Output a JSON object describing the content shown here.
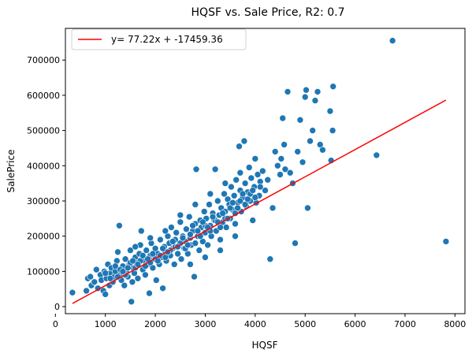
{
  "chart_data": {
    "type": "scatter",
    "title": "HQSF vs. Sale Price, R2: 0.7",
    "xlabel": "HQSF",
    "ylabel": "SalePrice",
    "xlim": [
      200,
      8200
    ],
    "ylim": [
      -20000,
      790000
    ],
    "x_ticks": [
      0,
      1000,
      2000,
      3000,
      4000,
      5000,
      6000,
      7000,
      8000
    ],
    "y_ticks": [
      0,
      100000,
      200000,
      300000,
      400000,
      500000,
      600000,
      700000
    ],
    "grid": false,
    "legend_position": "top-left",
    "colors": {
      "points": "#1f77b4",
      "fit_line": "#ff0000"
    },
    "fit_line": {
      "label": "y= 77.22x + -17459.36",
      "slope": 77.22,
      "intercept": -17459.36,
      "x_range": [
        340,
        7820
      ]
    },
    "points": [
      [
        340,
        40000
      ],
      [
        620,
        45000
      ],
      [
        650,
        80000
      ],
      [
        700,
        85000
      ],
      [
        720,
        60000
      ],
      [
        780,
        70000
      ],
      [
        820,
        105000
      ],
      [
        850,
        52000
      ],
      [
        900,
        90000
      ],
      [
        920,
        75000
      ],
      [
        960,
        45000
      ],
      [
        980,
        100000
      ],
      [
        1000,
        35000
      ],
      [
        1020,
        80000
      ],
      [
        1050,
        120000
      ],
      [
        1080,
        60000
      ],
      [
        1100,
        95000
      ],
      [
        1120,
        110000
      ],
      [
        1150,
        70000
      ],
      [
        1180,
        85000
      ],
      [
        1200,
        100000
      ],
      [
        1230,
        130000
      ],
      [
        1250,
        155000
      ],
      [
        1280,
        230000
      ],
      [
        1300,
        90000
      ],
      [
        1320,
        75000
      ],
      [
        1350,
        115000
      ],
      [
        1380,
        60000
      ],
      [
        1400,
        135000
      ],
      [
        1420,
        100000
      ],
      [
        1450,
        85000
      ],
      [
        1480,
        120000
      ],
      [
        1500,
        160000
      ],
      [
        1520,
        14000
      ],
      [
        1540,
        70000
      ],
      [
        1560,
        110000
      ],
      [
        1580,
        95000
      ],
      [
        1600,
        140000
      ],
      [
        1620,
        125000
      ],
      [
        1650,
        80000
      ],
      [
        1680,
        150000
      ],
      [
        1700,
        175000
      ],
      [
        1720,
        215000
      ],
      [
        1750,
        105000
      ],
      [
        1780,
        130000
      ],
      [
        1800,
        90000
      ],
      [
        1820,
        160000
      ],
      [
        1850,
        120000
      ],
      [
        1880,
        38000
      ],
      [
        1900,
        145000
      ],
      [
        1920,
        180000
      ],
      [
        1950,
        110000
      ],
      [
        1980,
        135000
      ],
      [
        2000,
        165000
      ],
      [
        2020,
        75000
      ],
      [
        2050,
        150000
      ],
      [
        2080,
        120000
      ],
      [
        2100,
        190000
      ],
      [
        2120,
        140000
      ],
      [
        2150,
        52000
      ],
      [
        2180,
        170000
      ],
      [
        2200,
        155000
      ],
      [
        2220,
        130000
      ],
      [
        2250,
        200000
      ],
      [
        2280,
        180000
      ],
      [
        2300,
        145000
      ],
      [
        2320,
        225000
      ],
      [
        2350,
        165000
      ],
      [
        2380,
        120000
      ],
      [
        2400,
        190000
      ],
      [
        2420,
        210000
      ],
      [
        2450,
        150000
      ],
      [
        2480,
        175000
      ],
      [
        2500,
        240000
      ],
      [
        2520,
        135000
      ],
      [
        2550,
        200000
      ],
      [
        2580,
        165000
      ],
      [
        2600,
        185000
      ],
      [
        2620,
        220000
      ],
      [
        2650,
        150000
      ],
      [
        2680,
        255000
      ],
      [
        2700,
        195000
      ],
      [
        2720,
        175000
      ],
      [
        2750,
        215000
      ],
      [
        2780,
        85000
      ],
      [
        2800,
        235000
      ],
      [
        2820,
        390000
      ],
      [
        2850,
        200000
      ],
      [
        2880,
        160000
      ],
      [
        2900,
        245000
      ],
      [
        2920,
        225000
      ],
      [
        2950,
        185000
      ],
      [
        2980,
        270000
      ],
      [
        3000,
        210000
      ],
      [
        3020,
        250000
      ],
      [
        3050,
        175000
      ],
      [
        3080,
        290000
      ],
      [
        3100,
        230000
      ],
      [
        3120,
        200000
      ],
      [
        3150,
        265000
      ],
      [
        3180,
        245000
      ],
      [
        3200,
        390000
      ],
      [
        3220,
        215000
      ],
      [
        3250,
        300000
      ],
      [
        3280,
        260000
      ],
      [
        3300,
        190000
      ],
      [
        3320,
        280000
      ],
      [
        3350,
        240000
      ],
      [
        3380,
        320000
      ],
      [
        3400,
        270000
      ],
      [
        3420,
        225000
      ],
      [
        3450,
        305000
      ],
      [
        3480,
        290000
      ],
      [
        3500,
        250000
      ],
      [
        3520,
        340000
      ],
      [
        3550,
        275000
      ],
      [
        3580,
        315000
      ],
      [
        3600,
        235000
      ],
      [
        3620,
        360000
      ],
      [
        3650,
        295000
      ],
      [
        3680,
        455000
      ],
      [
        3700,
        330000
      ],
      [
        3720,
        270000
      ],
      [
        3750,
        310000
      ],
      [
        3780,
        470000
      ],
      [
        3800,
        350000
      ],
      [
        3820,
        285000
      ],
      [
        3850,
        325000
      ],
      [
        3880,
        395000
      ],
      [
        3900,
        300000
      ],
      [
        3920,
        365000
      ],
      [
        3950,
        245000
      ],
      [
        3980,
        340000
      ],
      [
        4000,
        420000
      ],
      [
        4020,
        295000
      ],
      [
        4050,
        375000
      ],
      [
        4080,
        315000
      ],
      [
        4100,
        355000
      ],
      [
        4150,
        385000
      ],
      [
        4200,
        330000
      ],
      [
        4250,
        360000
      ],
      [
        4300,
        135000
      ],
      [
        4350,
        280000
      ],
      [
        4400,
        440000
      ],
      [
        4450,
        400000
      ],
      [
        4500,
        375000
      ],
      [
        4520,
        420000
      ],
      [
        4550,
        535000
      ],
      [
        4580,
        460000
      ],
      [
        4600,
        390000
      ],
      [
        4650,
        610000
      ],
      [
        4700,
        380000
      ],
      [
        4750,
        350000
      ],
      [
        4800,
        180000
      ],
      [
        4850,
        440000
      ],
      [
        4900,
        530000
      ],
      [
        4950,
        410000
      ],
      [
        5000,
        595000
      ],
      [
        5020,
        615000
      ],
      [
        5050,
        280000
      ],
      [
        5100,
        470000
      ],
      [
        5150,
        500000
      ],
      [
        5200,
        585000
      ],
      [
        5250,
        610000
      ],
      [
        5300,
        460000
      ],
      [
        5350,
        445000
      ],
      [
        5500,
        555000
      ],
      [
        5520,
        415000
      ],
      [
        5550,
        500000
      ],
      [
        5560,
        625000
      ],
      [
        6430,
        430000
      ],
      [
        6750,
        755000
      ],
      [
        7820,
        185000
      ],
      [
        1000,
        95000
      ],
      [
        1100,
        80000
      ],
      [
        1200,
        115000
      ],
      [
        1300,
        105000
      ],
      [
        1400,
        90000
      ],
      [
        1500,
        125000
      ],
      [
        1600,
        110000
      ],
      [
        1700,
        130000
      ],
      [
        1800,
        115000
      ],
      [
        1900,
        125000
      ],
      [
        2000,
        135000
      ],
      [
        2100,
        145000
      ],
      [
        2200,
        140000
      ],
      [
        2300,
        160000
      ],
      [
        2400,
        170000
      ],
      [
        2500,
        180000
      ],
      [
        2600,
        165000
      ],
      [
        2700,
        205000
      ],
      [
        2800,
        180000
      ],
      [
        2900,
        200000
      ],
      [
        3000,
        230000
      ],
      [
        3100,
        215000
      ],
      [
        3200,
        245000
      ],
      [
        3300,
        225000
      ],
      [
        3400,
        250000
      ],
      [
        3500,
        280000
      ],
      [
        3600,
        265000
      ],
      [
        3700,
        300000
      ],
      [
        3800,
        290000
      ],
      [
        3900,
        320000
      ],
      [
        4000,
        310000
      ],
      [
        4100,
        340000
      ],
      [
        1250,
        85000
      ],
      [
        1350,
        100000
      ],
      [
        1450,
        110000
      ],
      [
        1550,
        130000
      ],
      [
        1650,
        120000
      ],
      [
        1750,
        145000
      ],
      [
        1850,
        135000
      ],
      [
        1950,
        150000
      ],
      [
        2050,
        130000
      ],
      [
        2150,
        165000
      ],
      [
        2250,
        155000
      ],
      [
        2350,
        185000
      ],
      [
        2450,
        170000
      ],
      [
        2550,
        195000
      ],
      [
        2650,
        175000
      ],
      [
        2750,
        230000
      ],
      [
        2850,
        215000
      ],
      [
        2950,
        240000
      ],
      [
        3050,
        225000
      ],
      [
        3150,
        255000
      ],
      [
        3250,
        240000
      ],
      [
        3350,
        265000
      ],
      [
        3450,
        250000
      ],
      [
        3550,
        295000
      ],
      [
        3650,
        280000
      ],
      [
        3750,
        320000
      ],
      [
        3850,
        305000
      ],
      [
        3950,
        330000
      ],
      [
        2700,
        120000
      ],
      [
        3000,
        140000
      ],
      [
        3300,
        160000
      ],
      [
        3600,
        200000
      ],
      [
        1600,
        170000
      ],
      [
        1900,
        195000
      ],
      [
        2200,
        215000
      ],
      [
        2500,
        260000
      ],
      [
        2800,
        290000
      ],
      [
        3100,
        320000
      ],
      [
        3400,
        350000
      ],
      [
        3700,
        380000
      ]
    ]
  }
}
